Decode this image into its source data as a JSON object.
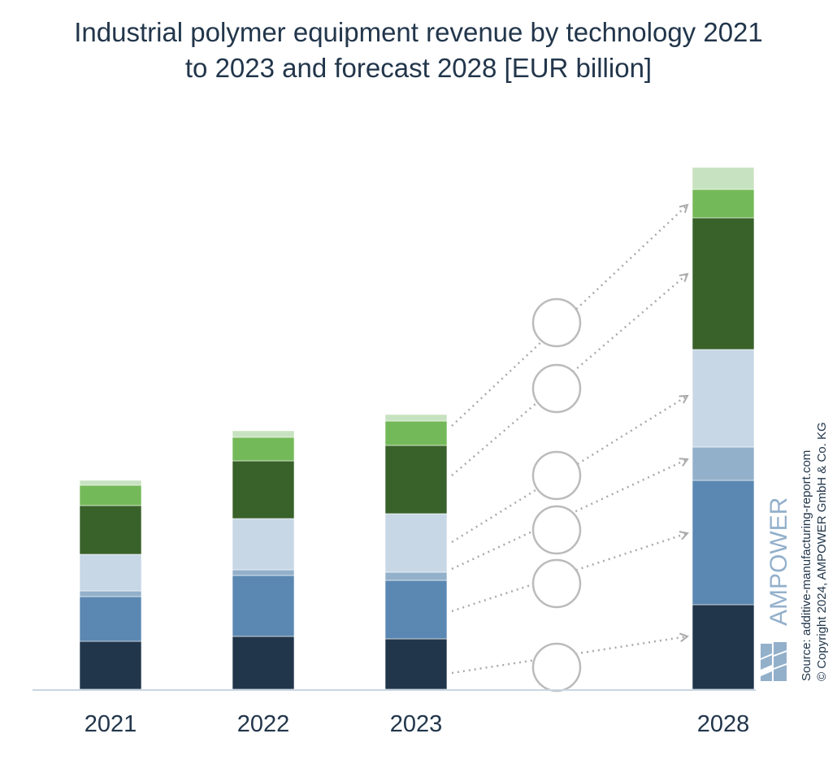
{
  "chart_data": {
    "type": "bar",
    "stacked": true,
    "title": "Industrial polymer equipment revenue by technology 2021 to 2023 and forecast 2028 [EUR billion]",
    "title_lines": [
      "Industrial polymer equipment revenue by technology 2021",
      "to 2023 and forecast 2028 [EUR billion]"
    ],
    "categories": [
      "2021",
      "2022",
      "2023",
      "2028"
    ],
    "value_note": "relative segment heights estimated from bar lengths; no axis values printed",
    "series": [
      {
        "color": "#22364b",
        "values": [
          5.9,
          6.5,
          6.2,
          10.4
        ]
      },
      {
        "color": "#5b88b2",
        "values": [
          5.5,
          7.5,
          7.2,
          15.3
        ]
      },
      {
        "color": "#93b0cb",
        "values": [
          0.7,
          0.7,
          1.0,
          4.1
        ]
      },
      {
        "color": "#c7d7e5",
        "values": [
          4.5,
          6.3,
          7.2,
          12.0
        ]
      },
      {
        "color": "#39612a",
        "values": [
          6.0,
          7.1,
          8.4,
          16.2
        ]
      },
      {
        "color": "#74b959",
        "values": [
          2.5,
          2.9,
          3.0,
          3.5
        ]
      },
      {
        "color": "#c7e2c0",
        "values": [
          0.6,
          0.8,
          0.8,
          2.7
        ]
      }
    ],
    "annotations": "empty circles with dotted arrows linking 2023 segments to 2028 segments",
    "grid": false,
    "legend": "none"
  },
  "footer": {
    "logo": "AMPOWER",
    "source": "Source: additive-manufacturing-report.com",
    "copyright": "© Copyright 2024, AMPOWER GmbH & Co. KG"
  }
}
